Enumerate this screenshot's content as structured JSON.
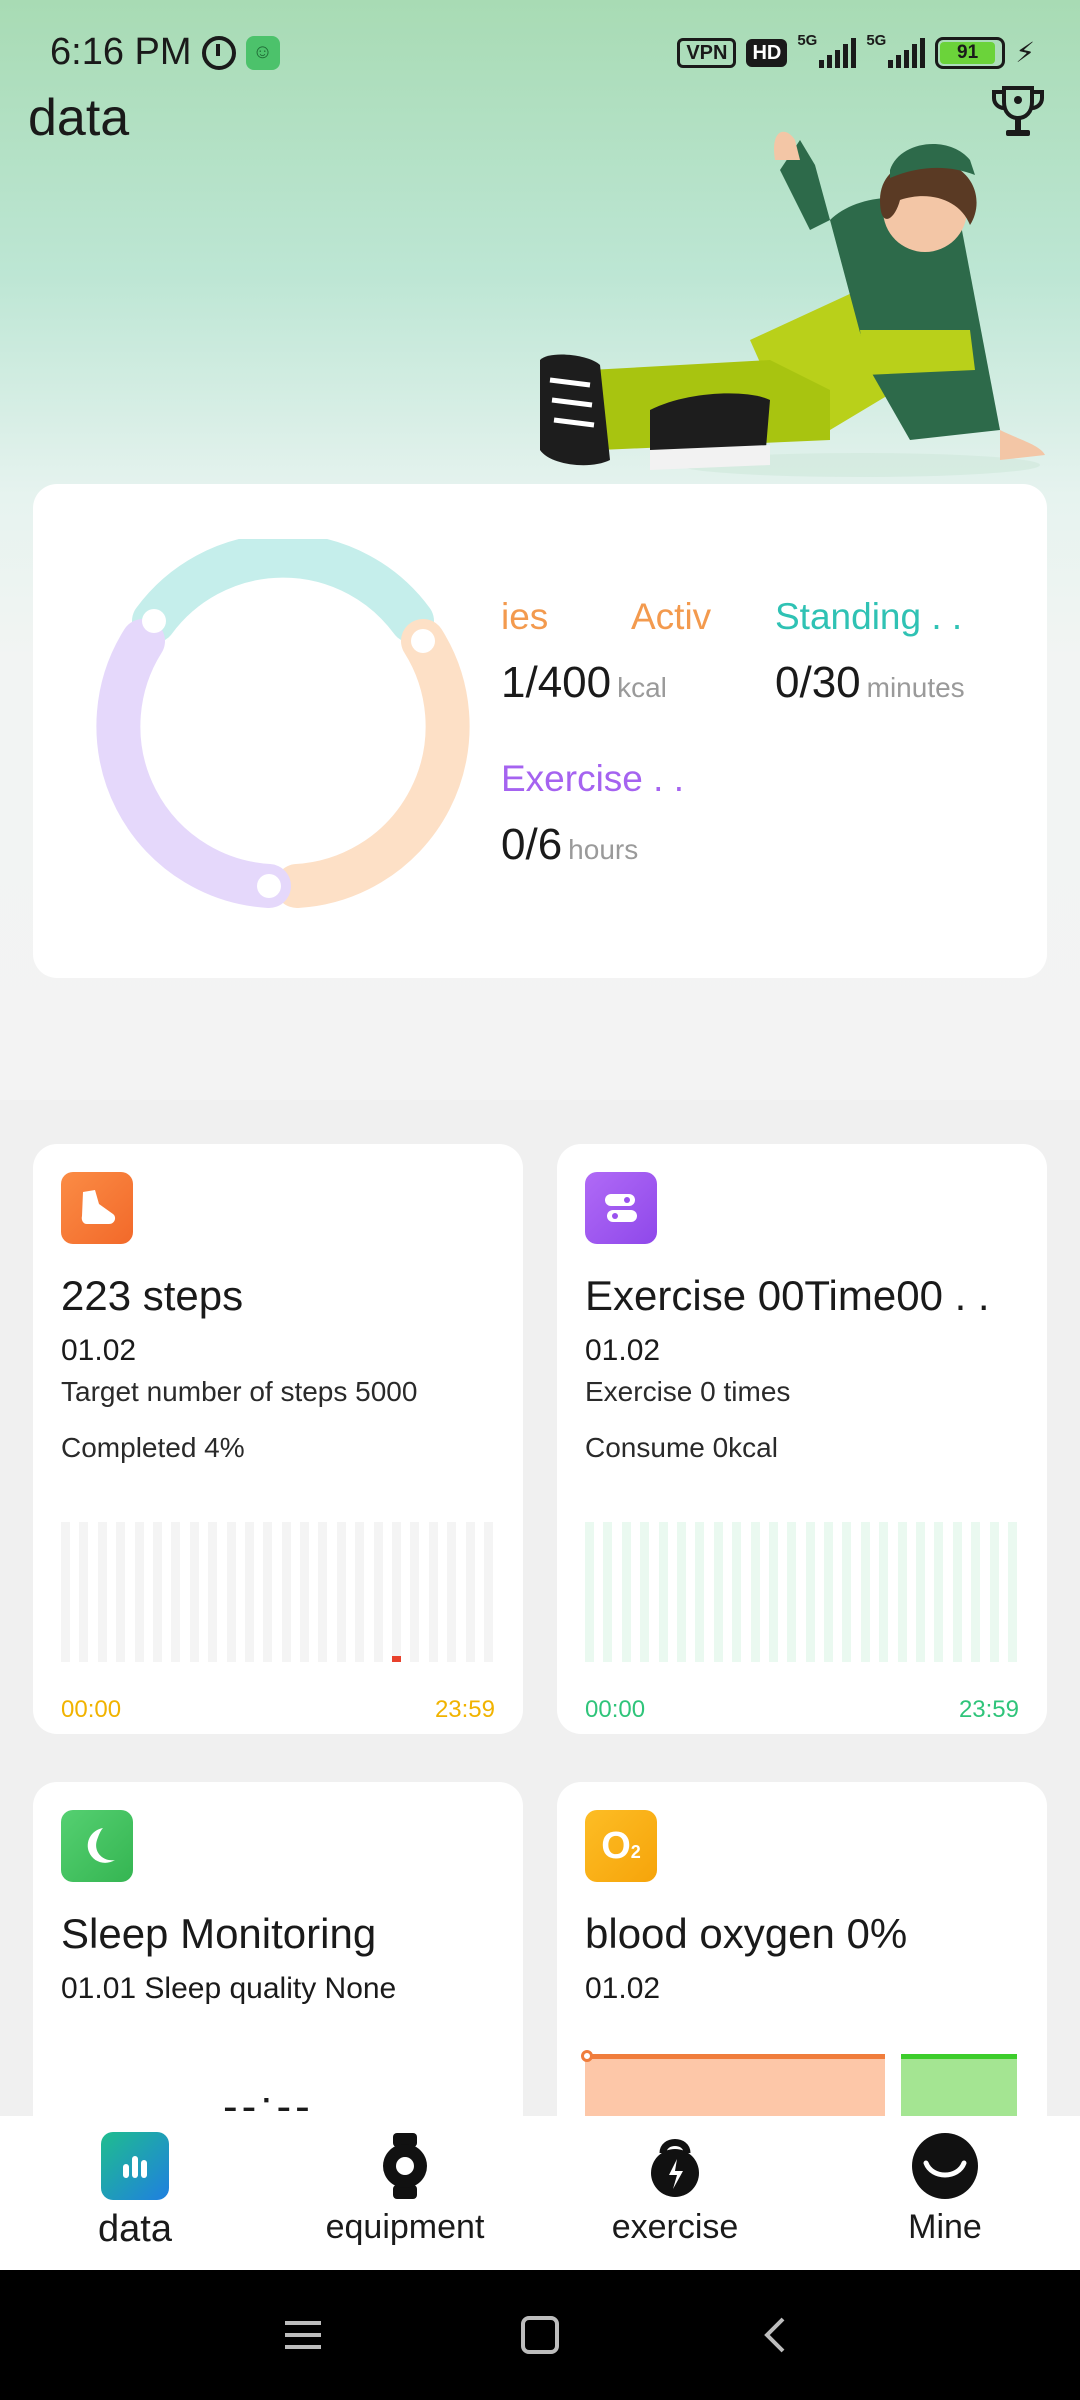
{
  "status_bar": {
    "time": "6:16 PM",
    "vpn": "VPN",
    "hd": "HD",
    "net1": "5G",
    "net2": "5G",
    "battery": "91"
  },
  "header": {
    "title": "data"
  },
  "goals": {
    "calories": {
      "label": "ies",
      "value": "1/400",
      "unit": "kcal",
      "color": "#f39a4e"
    },
    "active": {
      "label": "Activ",
      "color": "#f39a4e"
    },
    "standing": {
      "label": "Standing . .",
      "value": "0/30",
      "unit": "minutes",
      "color": "#2fc2b4"
    },
    "exercise": {
      "label": "Exercise . .",
      "value": "0/6",
      "unit": "hours",
      "color": "#a563f0"
    }
  },
  "steps_card": {
    "title": "223 steps",
    "date": "01.02",
    "target": "Target number of steps 5000",
    "completed": "Completed 4%",
    "time_start": "00:00",
    "time_end": "23:59",
    "icon": "shoe-icon",
    "color": "#f57a35"
  },
  "exercise_card": {
    "title": "Exercise 00Time00 . .",
    "date": "01.02",
    "line1": "Exercise 0 times",
    "line2": "Consume 0kcal",
    "time_start": "00:00",
    "time_end": "23:59",
    "icon": "exercise-route-icon",
    "color": "#a259f2"
  },
  "sleep_card": {
    "title": "Sleep Monitoring",
    "subtitle": "01.01 Sleep quality None",
    "value": "--:--",
    "icon": "moon-icon",
    "color": "#4cc562"
  },
  "oxygen_card": {
    "title": "blood oxygen 0%",
    "date": "01.02",
    "icon": "o2-icon",
    "color": "#fbb216"
  },
  "bottom_nav": {
    "items": [
      {
        "label": "data",
        "icon": "bar-chart-icon"
      },
      {
        "label": "equipment",
        "icon": "watch-icon"
      },
      {
        "label": "exercise",
        "icon": "kettlebell-icon"
      },
      {
        "label": "Mine",
        "icon": "profile-icon"
      }
    ]
  }
}
